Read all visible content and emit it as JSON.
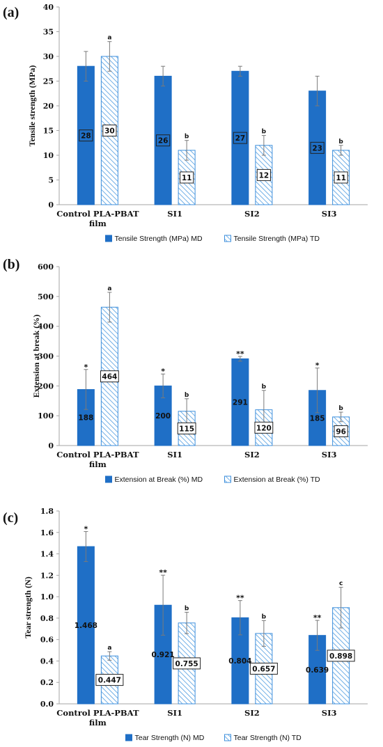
{
  "colors": {
    "md": "#1f6fc6",
    "td_stroke": "#3d8fdc",
    "td_hatch": "#4d9be0",
    "axis": "#a6a6a6",
    "error": "#7a7a7a",
    "labelbox_md": "#1f6fc6"
  },
  "chart_data": [
    {
      "type": "bar",
      "panel_label": "(a)",
      "categories": [
        "Control PLA-PBAT\nfilm",
        "SI1",
        "SI2",
        "SI3"
      ],
      "ylabel": "Tensile strength (MPa)",
      "ylim": [
        0,
        40
      ],
      "yticks": [
        0,
        5,
        10,
        15,
        20,
        25,
        30,
        35,
        40
      ],
      "tick_format": "int",
      "grid": false,
      "legend_position": "bottom",
      "series": [
        {
          "name": "Tensile Strength (MPa) MD",
          "style": "solid",
          "values": [
            28,
            26,
            27,
            23
          ],
          "errors": [
            3,
            2,
            1,
            3
          ],
          "labels": [
            "28",
            "26",
            "27",
            "23"
          ],
          "label_box": true,
          "sig": [
            "",
            "",
            "",
            ""
          ]
        },
        {
          "name": "Tensile Strength (MPa) TD",
          "style": "hatched",
          "values": [
            30,
            11,
            12,
            11
          ],
          "errors": [
            3,
            2,
            2,
            1
          ],
          "labels": [
            "30",
            "11",
            "12",
            "11"
          ],
          "label_box": true,
          "sig": [
            "a",
            "b",
            "b",
            "b"
          ]
        }
      ]
    },
    {
      "type": "bar",
      "panel_label": "(b)",
      "categories": [
        "Control PLA-PBAT\nfilm",
        "SI1",
        "SI2",
        "SI3"
      ],
      "ylabel": "Extension at break (%)",
      "ylim": [
        0,
        600
      ],
      "yticks": [
        0,
        100,
        200,
        300,
        400,
        500,
        600
      ],
      "tick_format": "int",
      "grid": false,
      "legend_position": "bottom",
      "series": [
        {
          "name": "Extension at Break (%) MD",
          "style": "solid",
          "values": [
            188,
            200,
            291,
            185
          ],
          "errors": [
            67,
            40,
            8,
            75
          ],
          "labels": [
            "188",
            "200",
            "291",
            "185"
          ],
          "label_box": false,
          "sig": [
            "*",
            "*",
            "**",
            "*"
          ]
        },
        {
          "name": "Extension at Break (%) TD",
          "style": "hatched",
          "values": [
            464,
            115,
            120,
            96
          ],
          "errors": [
            50,
            42,
            65,
            16
          ],
          "labels": [
            "464",
            "115",
            "120",
            "96"
          ],
          "label_box": true,
          "sig": [
            "a",
            "b",
            "b",
            "b"
          ]
        }
      ]
    },
    {
      "type": "bar",
      "panel_label": "(c)",
      "categories": [
        "Control PLA-PBAT\nfilm",
        "SI1",
        "SI2",
        "SI3"
      ],
      "ylabel": "Tear strength (N)",
      "ylim": [
        0,
        1.8
      ],
      "yticks": [
        0.0,
        0.2,
        0.4,
        0.6,
        0.8,
        1.0,
        1.2,
        1.4,
        1.6,
        1.8
      ],
      "tick_format": "1dp",
      "grid": false,
      "legend_position": "bottom",
      "series": [
        {
          "name": "Tear Strength (N) MD",
          "style": "solid",
          "values": [
            1.468,
            0.921,
            0.804,
            0.639
          ],
          "errors": [
            0.14,
            0.28,
            0.16,
            0.14
          ],
          "labels": [
            "1.468",
            "0.921",
            "0.804",
            "0.639"
          ],
          "label_box": false,
          "sig": [
            "*",
            "**",
            "**",
            "**"
          ]
        },
        {
          "name": "Tear Strength (N) TD",
          "style": "hatched",
          "values": [
            0.447,
            0.755,
            0.657,
            0.898
          ],
          "errors": [
            0.04,
            0.1,
            0.12,
            0.19
          ],
          "labels": [
            "0.447",
            "0.755",
            "0.657",
            "0.898"
          ],
          "label_box": true,
          "sig": [
            "a",
            "b",
            "b",
            "c"
          ]
        }
      ]
    }
  ]
}
